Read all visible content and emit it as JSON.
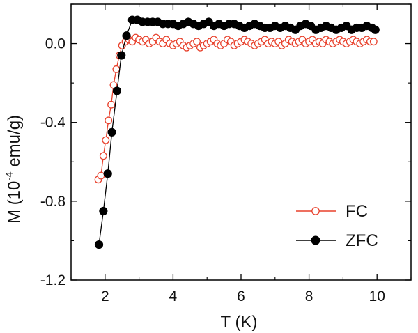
{
  "chart_data": {
    "type": "scatter",
    "xlabel": "T (K)",
    "ylabel": "M (10",
    "ylabel_exp": "-4",
    "ylabel_unit": " emu/g)",
    "xlim": [
      1.0,
      11.0
    ],
    "ylim": [
      -1.2,
      0.2
    ],
    "xticks": [
      2,
      4,
      6,
      8,
      10
    ],
    "xtick_labels": [
      "2",
      "4",
      "6",
      "8",
      "10"
    ],
    "yticks": [
      0.0,
      -0.4,
      -0.8,
      -1.2
    ],
    "ytick_labels": [
      "0.0",
      "-0.4",
      "-0.8",
      "-1.2"
    ],
    "grid": false,
    "legend_position": "bottom-right",
    "series": [
      {
        "name": "FC",
        "color": "#e8412c",
        "marker": "open-circle",
        "x": [
          1.8,
          1.88,
          1.95,
          2.02,
          2.1,
          2.18,
          2.25,
          2.33,
          2.42,
          2.5,
          2.6,
          2.7,
          2.8,
          2.9,
          3.0,
          3.1,
          3.2,
          3.3,
          3.4,
          3.5,
          3.6,
          3.7,
          3.8,
          3.9,
          4.0,
          4.1,
          4.2,
          4.3,
          4.4,
          4.5,
          4.6,
          4.7,
          4.8,
          4.9,
          5.0,
          5.1,
          5.2,
          5.3,
          5.4,
          5.5,
          5.6,
          5.7,
          5.8,
          5.9,
          6.0,
          6.1,
          6.2,
          6.3,
          6.4,
          6.5,
          6.6,
          6.7,
          6.8,
          6.9,
          7.0,
          7.1,
          7.2,
          7.3,
          7.4,
          7.5,
          7.6,
          7.7,
          7.8,
          7.9,
          8.0,
          8.1,
          8.2,
          8.3,
          8.4,
          8.5,
          8.6,
          8.7,
          8.8,
          8.9,
          9.0,
          9.1,
          9.2,
          9.3,
          9.4,
          9.5,
          9.6,
          9.7,
          9.8,
          9.9
        ],
        "y": [
          -0.69,
          -0.67,
          -0.57,
          -0.49,
          -0.39,
          -0.31,
          -0.21,
          -0.13,
          -0.06,
          -0.01,
          0.01,
          0.02,
          0.01,
          0.03,
          0.02,
          0.01,
          0.02,
          0.0,
          0.01,
          0.03,
          0.01,
          0.0,
          0.02,
          0.0,
          -0.01,
          0.0,
          0.01,
          -0.01,
          -0.02,
          -0.01,
          0.0,
          0.01,
          -0.02,
          -0.01,
          0.0,
          0.01,
          0.02,
          0.0,
          -0.01,
          0.0,
          0.02,
          0.01,
          -0.01,
          0.0,
          0.01,
          0.02,
          0.01,
          0.0,
          -0.01,
          0.0,
          0.01,
          0.02,
          0.0,
          0.01,
          0.0,
          0.01,
          -0.01,
          0.0,
          0.02,
          0.01,
          0.0,
          0.01,
          0.02,
          0.0,
          0.01,
          0.02,
          0.0,
          0.01,
          0.0,
          0.02,
          0.01,
          0.0,
          0.01,
          0.02,
          0.01,
          0.0,
          0.01,
          0.02,
          0.01,
          0.0,
          0.01,
          0.02,
          0.01,
          0.01
        ]
      },
      {
        "name": "ZFC",
        "color": "#000000",
        "marker": "filled-circle",
        "x": [
          1.82,
          1.95,
          2.08,
          2.2,
          2.35,
          2.48,
          2.63,
          2.8,
          2.95,
          3.1,
          3.25,
          3.4,
          3.55,
          3.7,
          3.85,
          4.0,
          4.15,
          4.3,
          4.45,
          4.6,
          4.75,
          4.9,
          5.05,
          5.2,
          5.35,
          5.5,
          5.65,
          5.8,
          5.95,
          6.1,
          6.25,
          6.4,
          6.55,
          6.7,
          6.85,
          7.0,
          7.15,
          7.3,
          7.45,
          7.6,
          7.75,
          7.9,
          8.05,
          8.2,
          8.35,
          8.5,
          8.65,
          8.8,
          8.95,
          9.1,
          9.25,
          9.4,
          9.55,
          9.7,
          9.85,
          9.95
        ],
        "y": [
          -1.02,
          -0.85,
          -0.66,
          -0.45,
          -0.24,
          -0.06,
          0.04,
          0.12,
          0.12,
          0.11,
          0.11,
          0.11,
          0.11,
          0.1,
          0.1,
          0.1,
          0.09,
          0.1,
          0.11,
          0.1,
          0.09,
          0.1,
          0.11,
          0.09,
          0.1,
          0.09,
          0.1,
          0.1,
          0.09,
          0.08,
          0.09,
          0.1,
          0.09,
          0.08,
          0.08,
          0.09,
          0.08,
          0.09,
          0.08,
          0.07,
          0.09,
          0.1,
          0.09,
          0.07,
          0.08,
          0.09,
          0.08,
          0.07,
          0.08,
          0.09,
          0.07,
          0.08,
          0.08,
          0.09,
          0.08,
          0.07
        ]
      }
    ]
  }
}
